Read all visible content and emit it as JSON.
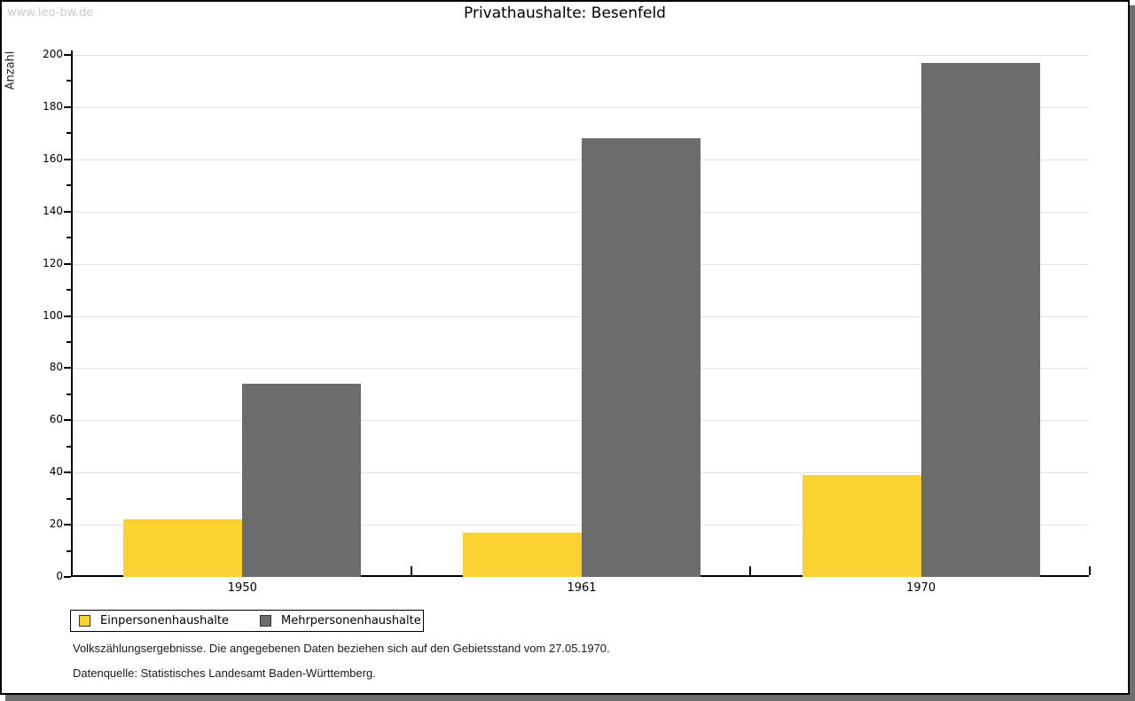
{
  "watermark": "www.leo-bw.de",
  "page": {
    "background": "#FFFFFF",
    "border_color": "#000000",
    "shadow_color": "#6E6E6E"
  },
  "chart_data": {
    "type": "bar",
    "title": "Privathaushalte: Besenfeld",
    "xlabel": "",
    "ylabel": "Anzahl",
    "categories": [
      "1950",
      "1961",
      "1970"
    ],
    "series": [
      {
        "name": "Einpersonenhaushalte",
        "color": "#FCD232",
        "values": [
          22,
          17,
          39
        ]
      },
      {
        "name": "Mehrpersonenhaushalte",
        "color": "#6C6C6C",
        "values": [
          74,
          168,
          197
        ]
      }
    ],
    "ylim": [
      0,
      200
    ],
    "ytick_major": 20,
    "ytick_minor": 10,
    "grid": true,
    "gridline_color": "#E3E3E3",
    "axis_color": "#000000",
    "legend_position": "bottom-left"
  },
  "footnotes": [
    "Volkszählungsergebnisse. Die angegebenen Daten beziehen sich auf den Gebietsstand vom 27.05.1970.",
    "Datenquelle: Statistisches Landesamt Baden-Württemberg."
  ]
}
